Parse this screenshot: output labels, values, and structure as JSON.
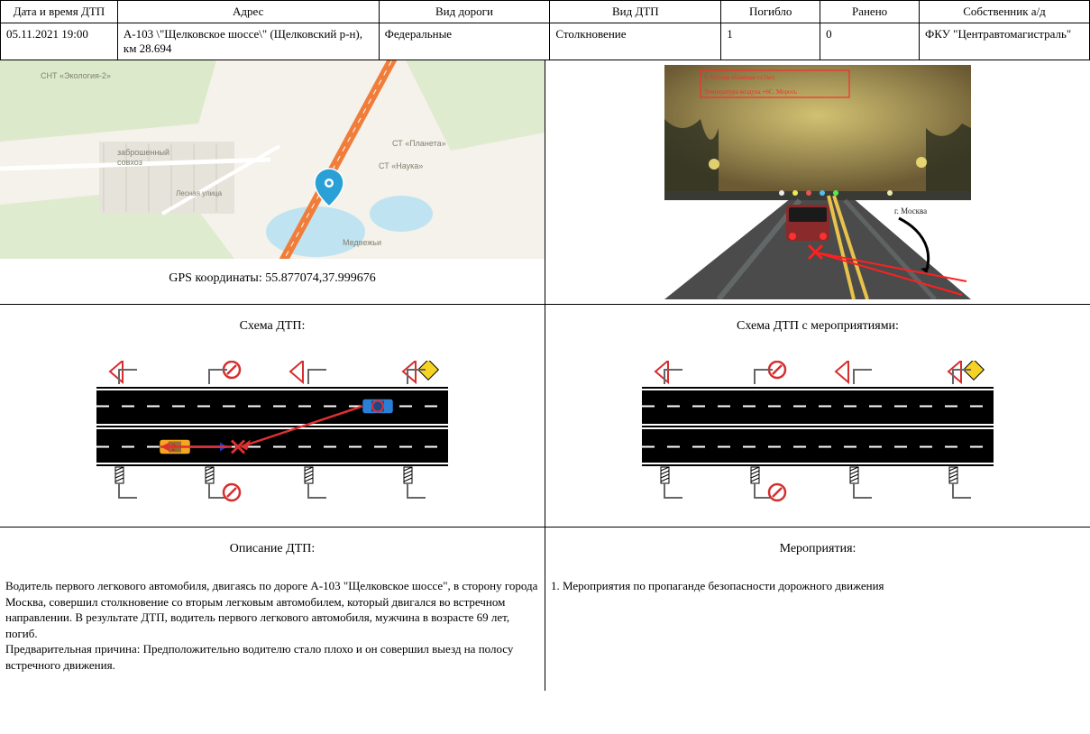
{
  "header": {
    "columns": [
      "Дата и время ДТП",
      "Адрес",
      "Вид дороги",
      "Вид ДТП",
      "Погибло",
      "Ранено",
      "Собственник а/д"
    ],
    "widths": [
      130,
      290,
      190,
      190,
      110,
      110,
      189
    ],
    "row": {
      "datetime": "05.11.2021 19:00",
      "address": "А-103 \\\"Щелковское шоссе\\\" (Щелковский р-н), км 28.694",
      "road_type": "Федеральные",
      "accident_type": "Столкновение",
      "deaths": "1",
      "injured": "0",
      "owner": "ФКУ \"Центравтомагистраль\""
    }
  },
  "map": {
    "gps_label": "GPS координаты: 55.877074,37.999676",
    "bg_land": "#f4f2ea",
    "bg_green": "#d9e9c8",
    "bg_water": "#bfe3f0",
    "road_color": "#f07d3a",
    "minor_road": "#ffffff",
    "labels": {
      "l1": "СНТ «Экология-2»",
      "l2": "заброшенный\nсовхоз",
      "l3": "Лесная улица",
      "l4": "СТ «Наука»",
      "l5": "СТ «Планета»",
      "l6": "Медвежьи"
    },
    "pin_color": "#2aa1d6"
  },
  "photo": {
    "sky": "#6b5a34",
    "road": "#4b4b4b",
    "road_marking": "#e8c24a",
    "glow": "#f2e07a",
    "box_border": "#ff2a2a",
    "note1": "1. Погода облачная ст.5м/с",
    "note3": "Температура воздуха +6С. Морось"
  },
  "scheme_left": {
    "title": "Схема ДТП:",
    "show_vehicles": true
  },
  "scheme_right": {
    "title": "Схема ДТП с мероприятиями:",
    "show_vehicles": false
  },
  "road": {
    "asphalt": "#000000",
    "lane_line": "#ffffff",
    "car1_color": "#f5a623",
    "car2_color": "#2a7fd6",
    "arrow_blue": "#1f3fbf",
    "arrow_red": "#e03030",
    "sign_red": "#d62e2e",
    "sign_yellow": "#f5d223",
    "pole": "#666666"
  },
  "description": {
    "title": "Описание ДТП:",
    "body": "Водитель первого легкового автомобиля, двигаясь по дороге А-103 \"Щелковское шоссе\", в сторону города Москва, совершил столкновение со вторым легковым автомобилем, который двигался во встречном направлении. В результате ДТП, водитель первого легкового автомобиля, мужчина в возрасте 69 лет, погиб.\nПредварительная причина: Предположительно водителю стало плохо и он совершил выезд на полосу встречного движения."
  },
  "measures": {
    "title": "Мероприятия:",
    "body": "1. Мероприятия по пропаганде безопасности дорожного движения"
  }
}
